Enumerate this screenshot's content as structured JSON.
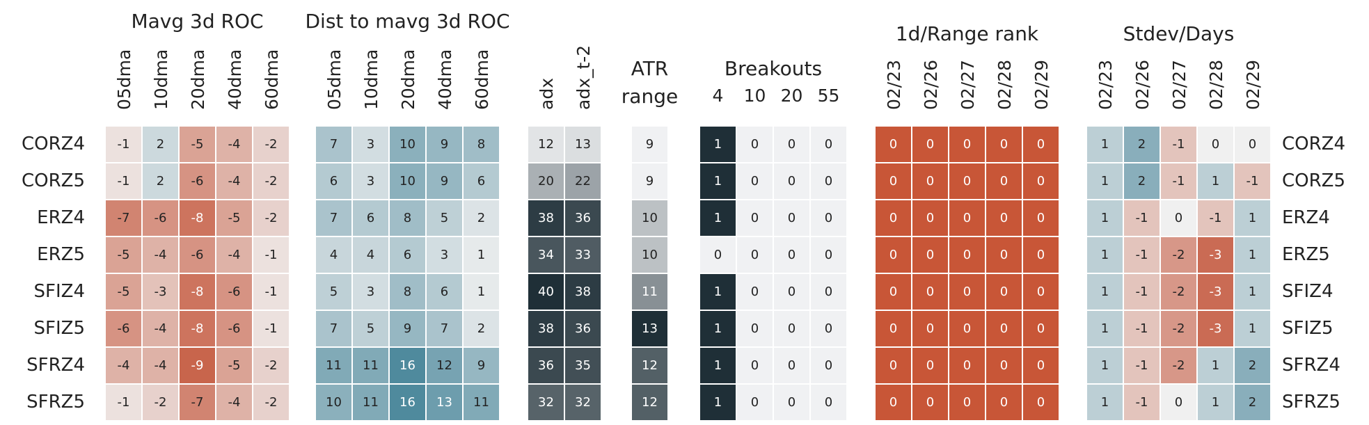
{
  "chart_data": {
    "type": "heatmap",
    "rows": [
      "CORZ4",
      "CORZ5",
      "ERZ4",
      "ERZ5",
      "SFIZ4",
      "SFIZ5",
      "SFRZ4",
      "SFRZ5"
    ],
    "groups": [
      {
        "title": "Mavg 3d ROC",
        "labels": [
          "05dma",
          "10dma",
          "20dma",
          "40dma",
          "60dma"
        ],
        "label_orientation": "vertical",
        "palette": "diverging",
        "range": [
          -10,
          10
        ],
        "values": [
          [
            -1,
            2,
            -5,
            -4,
            -2
          ],
          [
            -1,
            2,
            -6,
            -4,
            -2
          ],
          [
            -7,
            -6,
            -8,
            -5,
            -2
          ],
          [
            -5,
            -4,
            -6,
            -4,
            -1
          ],
          [
            -5,
            -3,
            -8,
            -6,
            -1
          ],
          [
            -6,
            -4,
            -8,
            -6,
            -1
          ],
          [
            -4,
            -4,
            -9,
            -5,
            -2
          ],
          [
            -1,
            -2,
            -7,
            -4,
            -2
          ]
        ]
      },
      {
        "title": "Dist to mavg 3d ROC",
        "labels": [
          "05dma",
          "10dma",
          "20dma",
          "40dma",
          "60dma"
        ],
        "label_orientation": "vertical",
        "palette": "diverging",
        "range": [
          -18,
          18
        ],
        "values": [
          [
            7,
            3,
            10,
            9,
            8
          ],
          [
            6,
            3,
            10,
            9,
            6
          ],
          [
            7,
            6,
            8,
            5,
            2
          ],
          [
            4,
            4,
            6,
            3,
            1
          ],
          [
            5,
            3,
            8,
            6,
            1
          ],
          [
            7,
            5,
            9,
            7,
            2
          ],
          [
            11,
            11,
            16,
            12,
            9
          ],
          [
            10,
            11,
            16,
            13,
            11
          ]
        ]
      },
      {
        "title": "",
        "labels": [
          "adx",
          "adx_t-2"
        ],
        "label_orientation": "vertical",
        "palette": "dark",
        "range": [
          10,
          40
        ],
        "values": [
          [
            12,
            13
          ],
          [
            20,
            22
          ],
          [
            38,
            36
          ],
          [
            34,
            33
          ],
          [
            40,
            38
          ],
          [
            38,
            36
          ],
          [
            36,
            35
          ],
          [
            32,
            32
          ]
        ]
      },
      {
        "title": "ATR",
        "subtitle": "range",
        "labels": [],
        "label_orientation": "none",
        "palette": "dark",
        "range": [
          9,
          13
        ],
        "values": [
          [
            9
          ],
          [
            9
          ],
          [
            10
          ],
          [
            10
          ],
          [
            11
          ],
          [
            13
          ],
          [
            12
          ],
          [
            12
          ]
        ]
      },
      {
        "title": "Breakouts",
        "labels": [
          "4",
          "10",
          "20",
          "55"
        ],
        "label_orientation": "horizontal",
        "palette": "dark",
        "range": [
          0,
          1
        ],
        "values": [
          [
            1,
            0,
            0,
            0
          ],
          [
            1,
            0,
            0,
            0
          ],
          [
            1,
            0,
            0,
            0
          ],
          [
            0,
            0,
            0,
            0
          ],
          [
            1,
            0,
            0,
            0
          ],
          [
            1,
            0,
            0,
            0
          ],
          [
            1,
            0,
            0,
            0
          ],
          [
            1,
            0,
            0,
            0
          ]
        ]
      },
      {
        "title": "1d/Range rank",
        "labels": [
          "02/23",
          "02/26",
          "02/27",
          "02/28",
          "02/29"
        ],
        "label_orientation": "vertical",
        "palette": "solid-red",
        "range": [
          0,
          1
        ],
        "values": [
          [
            0,
            0,
            0,
            0,
            0
          ],
          [
            0,
            0,
            0,
            0,
            0
          ],
          [
            0,
            0,
            0,
            0,
            0
          ],
          [
            0,
            0,
            0,
            0,
            0
          ],
          [
            0,
            0,
            0,
            0,
            0
          ],
          [
            0,
            0,
            0,
            0,
            0
          ],
          [
            0,
            0,
            0,
            0,
            0
          ],
          [
            0,
            0,
            0,
            0,
            0
          ]
        ]
      },
      {
        "title": "Stdev/Days",
        "labels": [
          "02/23",
          "02/26",
          "02/27",
          "02/28",
          "02/29"
        ],
        "label_orientation": "vertical",
        "palette": "diverging",
        "range": [
          -3.5,
          3.5
        ],
        "values": [
          [
            1,
            2,
            -1,
            0,
            0
          ],
          [
            1,
            2,
            -1,
            1,
            -1
          ],
          [
            1,
            -1,
            0,
            -1,
            1
          ],
          [
            1,
            -1,
            -2,
            -3,
            1
          ],
          [
            1,
            -1,
            -2,
            -3,
            1
          ],
          [
            1,
            -1,
            -2,
            -3,
            1
          ],
          [
            1,
            -1,
            -2,
            1,
            2
          ],
          [
            1,
            -1,
            0,
            1,
            2
          ]
        ]
      }
    ],
    "colors": {
      "negative": "#c4553a",
      "neutral": "#f0f0f0",
      "positive": "#3b7d93",
      "dark": "#1f2f37",
      "light": "#f0f1f3",
      "solid_red": "#c85637"
    }
  }
}
